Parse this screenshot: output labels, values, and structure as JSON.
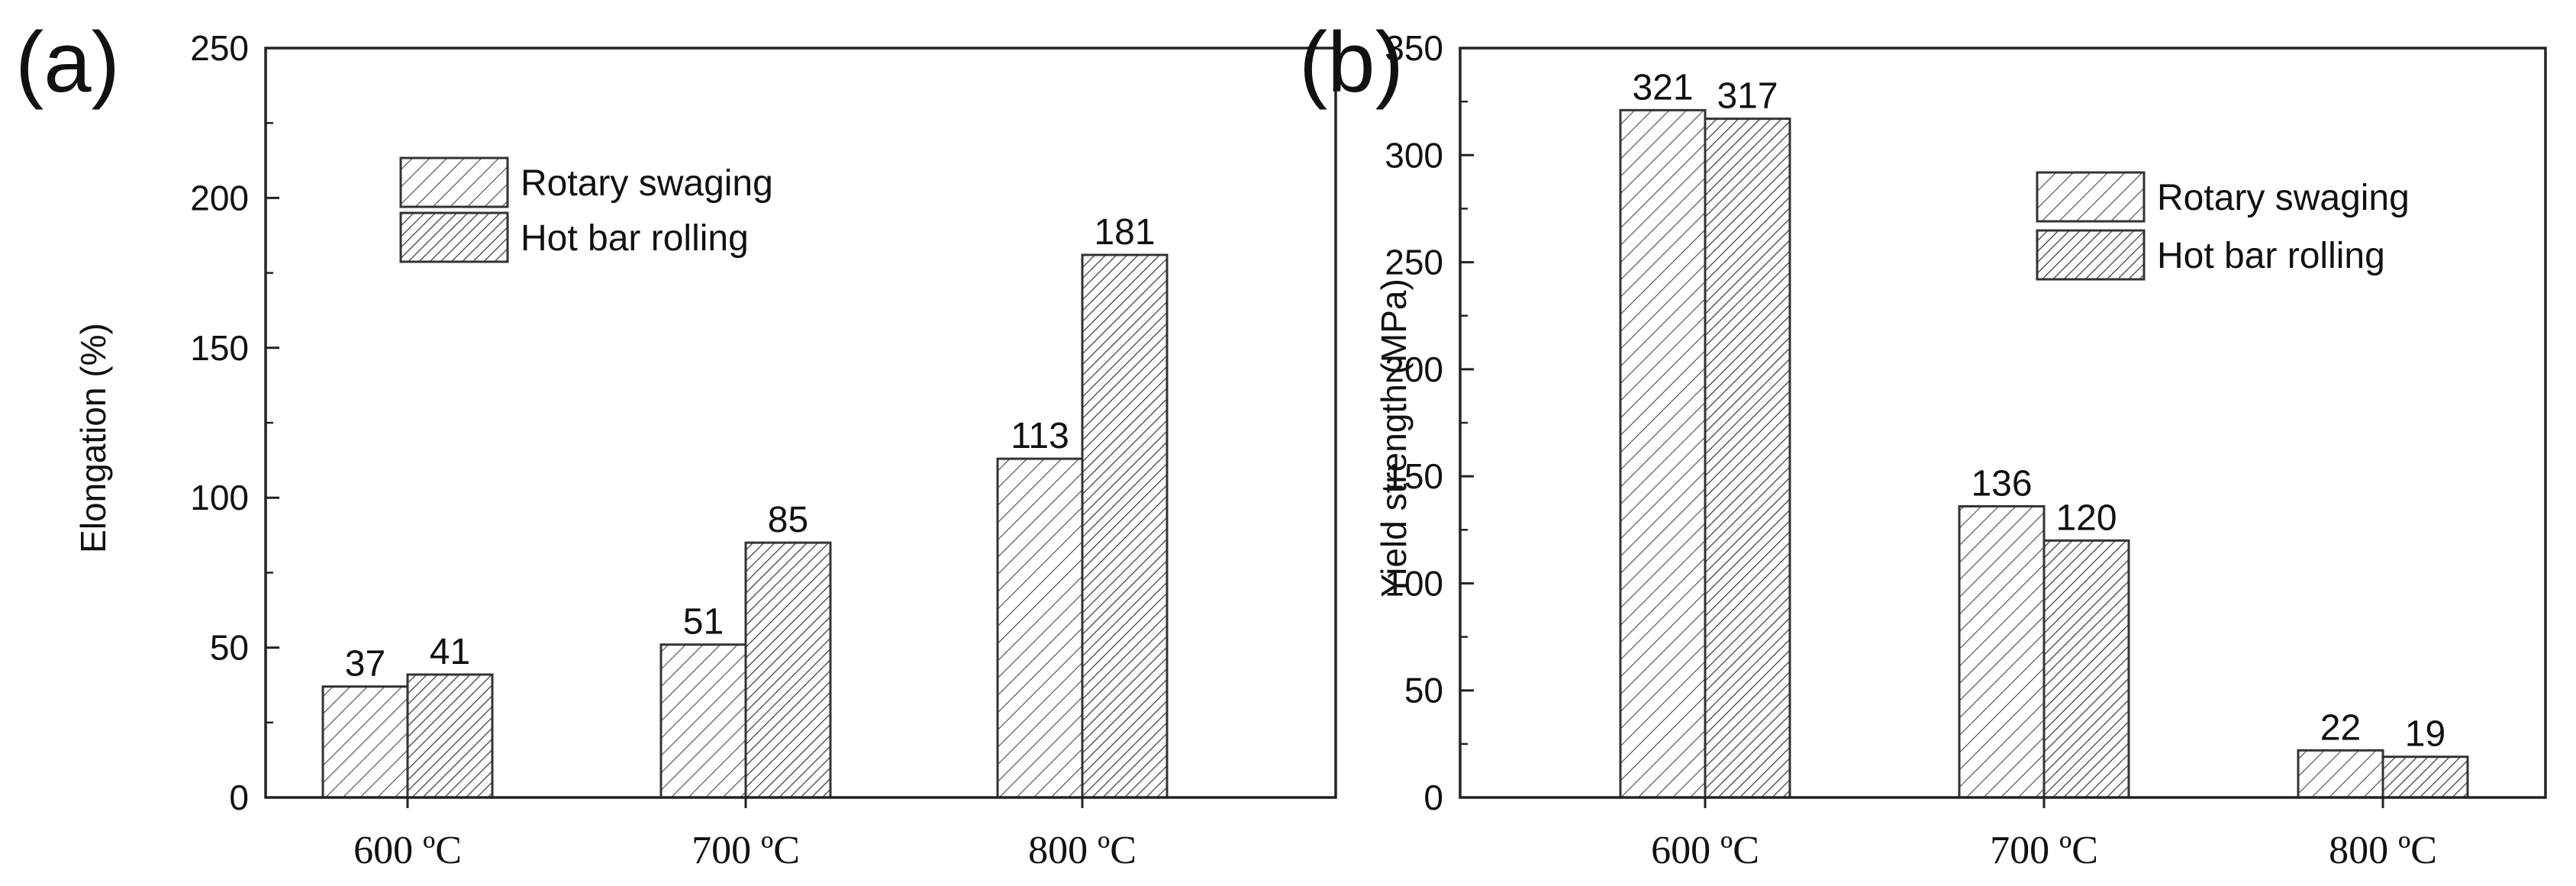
{
  "chart_data": [
    {
      "type": "bar",
      "panel_label": "(a)",
      "categories": [
        "600 ºC",
        "700 ºC",
        "800 ºC"
      ],
      "series": [
        {
          "name": "Rotary swaging",
          "values": [
            37,
            51,
            113
          ],
          "pattern": "light-hatch"
        },
        {
          "name": "Hot bar rolling",
          "values": [
            41,
            85,
            181
          ],
          "pattern": "dense-hatch"
        }
      ],
      "data_labels": [
        [
          "37",
          "51",
          "113"
        ],
        [
          "41",
          "85",
          "181"
        ]
      ],
      "xlabel": "",
      "ylabel": "Elongation (%)",
      "ylim": [
        0,
        250
      ],
      "yticks": [
        0,
        50,
        100,
        150,
        200,
        250
      ],
      "legend": "top-left-inside",
      "grid": false
    },
    {
      "type": "bar",
      "panel_label": "(b)",
      "categories": [
        "600 ºC",
        "700 ºC",
        "800 ºC"
      ],
      "series": [
        {
          "name": "Rotary swaging",
          "values": [
            321,
            136,
            22
          ],
          "pattern": "light-hatch"
        },
        {
          "name": "Hot bar rolling",
          "values": [
            317,
            120,
            19
          ],
          "pattern": "dense-hatch"
        }
      ],
      "data_labels": [
        [
          "321",
          "136",
          "22"
        ],
        [
          "317",
          "120",
          "19"
        ]
      ],
      "xlabel": "",
      "ylabel": "Yield strength (MPa)",
      "ylim": [
        0,
        350
      ],
      "yticks": [
        0,
        50,
        100,
        150,
        200,
        250,
        300,
        350
      ],
      "legend": "top-right-inside",
      "grid": false
    }
  ],
  "colors": {
    "axis": "#222222",
    "hatch": "#444444",
    "background": "#ffffff"
  }
}
